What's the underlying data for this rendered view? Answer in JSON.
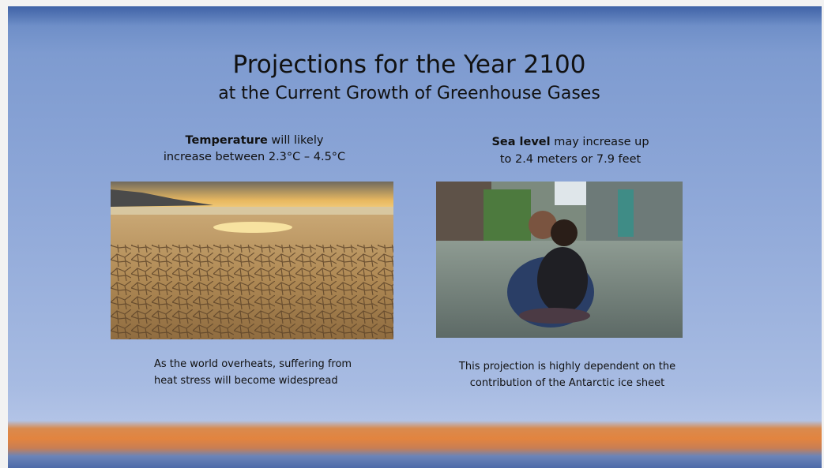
{
  "slide": {
    "title": "Projections for the Year 2100",
    "subtitle": "at the Current Growth of Greenhouse Gases",
    "left": {
      "heading": {
        "bold": "Temperature",
        "rest": " will likely",
        "line2": "increase between 2.3°C – 4.5°C"
      },
      "caption": [
        "As the world overheats, suffering from",
        "heat stress will become widespread"
      ]
    },
    "right": {
      "heading": {
        "bold": "Sea level",
        "rest": " may increase up",
        "line2": "to 2.4 meters or 7.9 feet"
      },
      "caption": [
        "This projection is highly dependent on the",
        "contribution of the Antarctic ice sheet"
      ]
    }
  }
}
